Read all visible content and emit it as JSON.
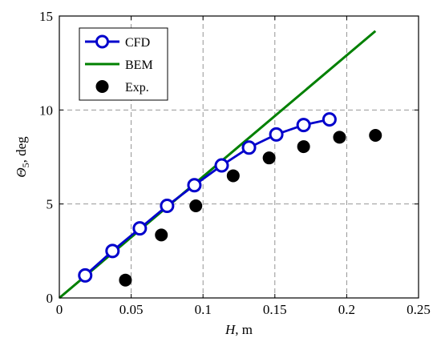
{
  "chart_data": {
    "type": "line",
    "title": "",
    "xlabel_symbol": "H",
    "xlabel_unit": ", m",
    "ylabel_symbol": "Θ",
    "ylabel_sub": "5",
    "ylabel_unit": ", deg",
    "xlim": [
      0,
      0.25
    ],
    "ylim": [
      0,
      15
    ],
    "xticks": [
      0,
      0.05,
      0.1,
      0.15,
      0.2,
      0.25
    ],
    "xtick_labels": [
      "0",
      "0.05",
      "0.1",
      "0.15",
      "0.2",
      "0.25"
    ],
    "yticks": [
      0,
      5,
      10,
      15
    ],
    "ytick_labels": [
      "0",
      "5",
      "10",
      "15"
    ],
    "grid": true,
    "legend_position": "top-left",
    "series": [
      {
        "name": "CFD",
        "style": "line-open-circle",
        "color": "#0000cc",
        "x": [
          0.018,
          0.037,
          0.056,
          0.075,
          0.094,
          0.113,
          0.132,
          0.151,
          0.17,
          0.188
        ],
        "y": [
          1.2,
          2.5,
          3.7,
          4.9,
          6.0,
          7.05,
          8.0,
          8.7,
          9.2,
          9.5
        ]
      },
      {
        "name": "BEM",
        "style": "line",
        "color": "#008000",
        "x": [
          0,
          0.22
        ],
        "y": [
          0,
          14.2
        ]
      },
      {
        "name": "Exp.",
        "style": "filled-circle",
        "color": "#000000",
        "x": [
          0.046,
          0.071,
          0.095,
          0.121,
          0.146,
          0.17,
          0.195,
          0.22
        ],
        "y": [
          0.95,
          3.35,
          4.9,
          6.5,
          7.45,
          8.05,
          8.55,
          8.65
        ]
      }
    ]
  }
}
